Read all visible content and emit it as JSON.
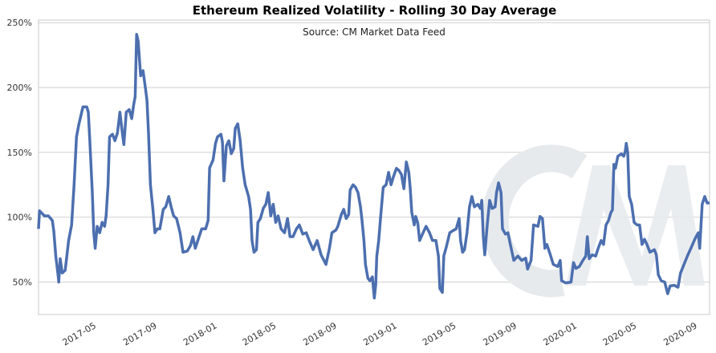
{
  "chart_data": {
    "type": "line",
    "title": "Ethereum Realized Volatility - Rolling 30 Day Average",
    "subtitle": "Source: CM Market Data Feed",
    "xlabel": "",
    "ylabel": "",
    "xlim": [
      "2017-01-03",
      "2020-09-25"
    ],
    "ylim": [
      25,
      252
    ],
    "grid": "horizontal",
    "y_ticks": [
      50,
      100,
      150,
      200,
      250
    ],
    "y_tick_labels": [
      "50%",
      "100%",
      "150%",
      "200%",
      "250%"
    ],
    "x_tick_labels": [
      "2017-05",
      "2017-09",
      "2018-01",
      "2018-05",
      "2018-09",
      "2019-01",
      "2019-05",
      "2019-09",
      "2020-01",
      "2020-05",
      "2020-09"
    ],
    "line_color": "#4c6faf",
    "watermark_color": "#e6eaed",
    "watermark_text": "CM",
    "series": [
      {
        "x": [
          "2017-01-03",
          "2017-01-05",
          "2017-01-15",
          "2017-01-23",
          "2017-01-31",
          "2017-02-03",
          "2017-02-07",
          "2017-02-12",
          "2017-02-13",
          "2017-02-16",
          "2017-02-20",
          "2017-02-26",
          "2017-03-05",
          "2017-03-11",
          "2017-03-16",
          "2017-03-21",
          "2017-03-26",
          "2017-04-03",
          "2017-04-11",
          "2017-04-14",
          "2017-04-17",
          "2017-04-22",
          "2017-04-25",
          "2017-04-28",
          "2017-05-02",
          "2017-05-07",
          "2017-05-12",
          "2017-05-17",
          "2017-05-20",
          "2017-05-24",
          "2017-05-27",
          "2017-06-02",
          "2017-06-07",
          "2017-06-12",
          "2017-06-17",
          "2017-06-22",
          "2017-06-25",
          "2017-06-30",
          "2017-07-06",
          "2017-07-11",
          "2017-07-15",
          "2017-07-18",
          "2017-07-21",
          "2017-07-24",
          "2017-07-29",
          "2017-08-03",
          "2017-08-08",
          "2017-08-11",
          "2017-08-14",
          "2017-08-18",
          "2017-08-23",
          "2017-08-27",
          "2017-09-01",
          "2017-09-06",
          "2017-09-13",
          "2017-09-18",
          "2017-09-24",
          "2017-09-29",
          "2017-10-04",
          "2017-10-10",
          "2017-10-17",
          "2017-10-23",
          "2017-11-01",
          "2017-11-07",
          "2017-11-12",
          "2017-11-17",
          "2017-11-23",
          "2017-11-30",
          "2017-12-08",
          "2017-12-13",
          "2017-12-16",
          "2017-12-23",
          "2017-12-28",
          "2018-01-01",
          "2018-01-08",
          "2018-01-11",
          "2018-01-14",
          "2018-01-19",
          "2018-01-24",
          "2018-01-29",
          "2018-02-03",
          "2018-02-06",
          "2018-02-11",
          "2018-02-16",
          "2018-02-21",
          "2018-02-26",
          "2018-03-05",
          "2018-03-09",
          "2018-03-12",
          "2018-03-16",
          "2018-03-21",
          "2018-03-24",
          "2018-03-29",
          "2018-04-04",
          "2018-04-09",
          "2018-04-14",
          "2018-04-19",
          "2018-04-24",
          "2018-04-29",
          "2018-05-04",
          "2018-05-10",
          "2018-05-17",
          "2018-05-23",
          "2018-05-28",
          "2018-06-03",
          "2018-06-10",
          "2018-06-16",
          "2018-06-23",
          "2018-06-30",
          "2018-07-06",
          "2018-07-14",
          "2018-07-22",
          "2018-07-30",
          "2018-08-09",
          "2018-08-16",
          "2018-08-21",
          "2018-08-29",
          "2018-09-02",
          "2018-09-09",
          "2018-09-14",
          "2018-09-19",
          "2018-09-24",
          "2018-09-27",
          "2018-10-03",
          "2018-10-08",
          "2018-10-13",
          "2018-10-18",
          "2018-10-21",
          "2018-10-25",
          "2018-10-28",
          "2018-11-02",
          "2018-11-06",
          "2018-11-11",
          "2018-11-15",
          "2018-11-18",
          "2018-11-20",
          "2018-11-24",
          "2018-11-28",
          "2018-12-03",
          "2018-12-09",
          "2018-12-14",
          "2018-12-19",
          "2018-12-24",
          "2018-12-30",
          "2019-01-04",
          "2019-01-09",
          "2019-01-14",
          "2019-01-19",
          "2019-01-24",
          "2019-01-27",
          "2019-01-30",
          "2019-02-04",
          "2019-02-07",
          "2019-02-11",
          "2019-02-15",
          "2019-02-22",
          "2019-02-28",
          "2019-03-07",
          "2019-03-13",
          "2019-03-20",
          "2019-03-25",
          "2019-03-28",
          "2019-04-02",
          "2019-04-05",
          "2019-04-10",
          "2019-04-17",
          "2019-04-23",
          "2019-04-30",
          "2019-05-06",
          "2019-05-09",
          "2019-05-13",
          "2019-05-17",
          "2019-05-22",
          "2019-05-27",
          "2019-06-01",
          "2019-06-06",
          "2019-06-13",
          "2019-06-18",
          "2019-06-21",
          "2019-06-24",
          "2019-06-27",
          "2019-07-02",
          "2019-07-07",
          "2019-07-12",
          "2019-07-18",
          "2019-07-21",
          "2019-07-25",
          "2019-07-30",
          "2019-08-02",
          "2019-08-08",
          "2019-08-13",
          "2019-08-18",
          "2019-08-25",
          "2019-09-02",
          "2019-09-10",
          "2019-09-18",
          "2019-09-22",
          "2019-09-29",
          "2019-10-04",
          "2019-10-13",
          "2019-10-17",
          "2019-10-22",
          "2019-10-27",
          "2019-10-31",
          "2019-11-07",
          "2019-11-13",
          "2019-11-22",
          "2019-11-27",
          "2019-11-30",
          "2019-12-08",
          "2019-12-19",
          "2019-12-24",
          "2019-12-29",
          "2020-01-05",
          "2020-01-12",
          "2020-01-18",
          "2020-01-21",
          "2020-01-25",
          "2020-01-31",
          "2020-02-07",
          "2020-02-12",
          "2020-02-18",
          "2020-02-23",
          "2020-02-28",
          "2020-03-04",
          "2020-03-09",
          "2020-03-12",
          "2020-03-15",
          "2020-03-18",
          "2020-03-23",
          "2020-03-30",
          "2020-04-04",
          "2020-04-07",
          "2020-04-09",
          "2020-04-12",
          "2020-04-15",
          "2020-04-20",
          "2020-04-25",
          "2020-05-01",
          "2020-05-06",
          "2020-05-11",
          "2020-05-16",
          "2020-05-21",
          "2020-05-27",
          "2020-06-05",
          "2020-06-09",
          "2020-06-13",
          "2020-06-19",
          "2020-06-26",
          "2020-07-02",
          "2020-07-07",
          "2020-07-15",
          "2020-07-23",
          "2020-07-28",
          "2020-08-04",
          "2020-08-12",
          "2020-08-18",
          "2020-08-26",
          "2020-09-02",
          "2020-09-05",
          "2020-09-10",
          "2020-09-15",
          "2020-09-20",
          "2020-09-25"
        ],
        "y": [
          91,
          105,
          101,
          101,
          97.5,
          89.5,
          70,
          54,
          50,
          68,
          57,
          59,
          82,
          94,
          124,
          162,
          172,
          185,
          185,
          181,
          159,
          119,
          88,
          76,
          93,
          88,
          96,
          93,
          101,
          125,
          162,
          164,
          159,
          165,
          181,
          165,
          156,
          181,
          183,
          176,
          187,
          193,
          241,
          236,
          209,
          213,
          199,
          190,
          165,
          125,
          106,
          88,
          91,
          91,
          106,
          108,
          116,
          108,
          101,
          99,
          88,
          73,
          74,
          78,
          85,
          76,
          83,
          91,
          91,
          97.5,
          138,
          144,
          157,
          162,
          164,
          158,
          128,
          155,
          159,
          149,
          153,
          168.5,
          172,
          159,
          138,
          125,
          116,
          106,
          82,
          73,
          75,
          96,
          99,
          107,
          110,
          119,
          101,
          110,
          96,
          101,
          91,
          88,
          99,
          85,
          85,
          91,
          94,
          87,
          88,
          82,
          75,
          82,
          71,
          63.6,
          76,
          88,
          90,
          93,
          102,
          106,
          99,
          102,
          121,
          125,
          123,
          119,
          108,
          97.5,
          82,
          63.6,
          53,
          51,
          54,
          37.7,
          48,
          70,
          82,
          101,
          123,
          125,
          134.6,
          125,
          131.5,
          137.7,
          136,
          133,
          122,
          142.6,
          134.6,
          122,
          103.7,
          94,
          100.6,
          95.7,
          82,
          88,
          93,
          88,
          82,
          82,
          70,
          45,
          42,
          70,
          77,
          88,
          89.5,
          91,
          99,
          82,
          73,
          75,
          88,
          108,
          116,
          108,
          110,
          106.8,
          113,
          85,
          71,
          94,
          113,
          106.8,
          108,
          119,
          126.5,
          119,
          91,
          87,
          88,
          79,
          66.7,
          70,
          66.7,
          68.5,
          60,
          66.7,
          94,
          93,
          100.6,
          99,
          76,
          79,
          71,
          63.6,
          62,
          66.7,
          51,
          49.4,
          50,
          65,
          60.5,
          62,
          66.7,
          70,
          85,
          68,
          71,
          70,
          76,
          82,
          79,
          94,
          97.5,
          103.7,
          105.6,
          140.7,
          137.7,
          147,
          148.8,
          147,
          151,
          157,
          150,
          116,
          110,
          96,
          94,
          94,
          79,
          83,
          79,
          73,
          75,
          71,
          55.6,
          51,
          50,
          41,
          47,
          47.5,
          46,
          57,
          63.6,
          71,
          76,
          83,
          88,
          76,
          110,
          116,
          111,
          111
        ]
      }
    ]
  }
}
